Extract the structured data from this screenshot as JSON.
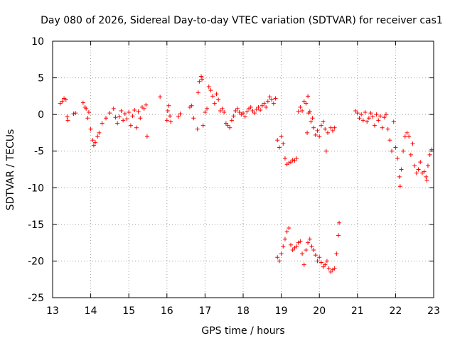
{
  "chart_data": {
    "type": "scatter",
    "title": "Day 080 of 2026, Sidereal Day-to-day VTEC variation (SDTVAR) for receiver cas1",
    "xlabel": "GPS time / hours",
    "ylabel": "SDTVAR / TECUs",
    "xlim": [
      13,
      23
    ],
    "ylim": [
      -25,
      10
    ],
    "x_ticks": [
      "13",
      "14",
      "15",
      "16",
      "17",
      "18",
      "19",
      "20",
      "21",
      "22",
      "23"
    ],
    "y_ticks": [
      "10",
      "5",
      "0",
      "-5",
      "-10",
      "-15",
      "-20",
      "-25"
    ],
    "grid": true,
    "marker": "+",
    "color": "#ff0000",
    "series": [
      {
        "name": "SDTVAR",
        "points": [
          [
            13.2,
            1.5
          ],
          [
            13.25,
            1.8
          ],
          [
            13.3,
            2.2
          ],
          [
            13.35,
            2.0
          ],
          [
            13.38,
            -0.3
          ],
          [
            13.4,
            -0.8
          ],
          [
            13.55,
            0.1
          ],
          [
            13.6,
            0.2
          ],
          [
            13.8,
            1.6
          ],
          [
            13.85,
            1.0
          ],
          [
            13.88,
            0.8
          ],
          [
            13.92,
            -0.5
          ],
          [
            13.95,
            0.3
          ],
          [
            14.0,
            -2.0
          ],
          [
            14.05,
            -3.5
          ],
          [
            14.08,
            -4.2
          ],
          [
            14.12,
            -3.8
          ],
          [
            14.18,
            -3.0
          ],
          [
            14.22,
            -2.5
          ],
          [
            14.3,
            -1.2
          ],
          [
            14.4,
            -0.5
          ],
          [
            14.5,
            0.2
          ],
          [
            14.6,
            0.8
          ],
          [
            14.65,
            -0.4
          ],
          [
            14.7,
            -1.2
          ],
          [
            14.75,
            -0.3
          ],
          [
            14.8,
            0.5
          ],
          [
            14.85,
            -0.8
          ],
          [
            14.9,
            0.1
          ],
          [
            14.95,
            -0.6
          ],
          [
            15.0,
            0.3
          ],
          [
            15.05,
            -1.5
          ],
          [
            15.1,
            -0.2
          ],
          [
            15.15,
            0.6
          ],
          [
            15.2,
            -1.8
          ],
          [
            15.25,
            0.4
          ],
          [
            15.3,
            -0.5
          ],
          [
            15.35,
            1.0
          ],
          [
            15.4,
            0.8
          ],
          [
            15.45,
            1.3
          ],
          [
            15.48,
            -3.0
          ],
          [
            15.82,
            2.4
          ],
          [
            16.0,
            -0.8
          ],
          [
            16.02,
            0.5
          ],
          [
            16.05,
            1.2
          ],
          [
            16.08,
            -0.2
          ],
          [
            16.1,
            -1.0
          ],
          [
            16.3,
            -0.3
          ],
          [
            16.35,
            0.1
          ],
          [
            16.6,
            1.0
          ],
          [
            16.65,
            1.2
          ],
          [
            16.7,
            -0.5
          ],
          [
            16.8,
            -2.0
          ],
          [
            16.82,
            3.0
          ],
          [
            16.85,
            4.5
          ],
          [
            16.9,
            5.2
          ],
          [
            16.92,
            4.8
          ],
          [
            16.95,
            -1.5
          ],
          [
            17.0,
            0.3
          ],
          [
            17.05,
            0.8
          ],
          [
            17.1,
            3.8
          ],
          [
            17.15,
            3.3
          ],
          [
            17.2,
            2.5
          ],
          [
            17.25,
            1.5
          ],
          [
            17.3,
            2.8
          ],
          [
            17.35,
            2.0
          ],
          [
            17.4,
            0.5
          ],
          [
            17.45,
            0.8
          ],
          [
            17.5,
            0.3
          ],
          [
            17.55,
            -1.2
          ],
          [
            17.6,
            -1.5
          ],
          [
            17.65,
            -1.8
          ],
          [
            17.7,
            -0.8
          ],
          [
            17.75,
            -0.2
          ],
          [
            17.8,
            0.5
          ],
          [
            17.85,
            0.8
          ],
          [
            17.9,
            0.3
          ],
          [
            17.95,
            0.0
          ],
          [
            18.0,
            0.2
          ],
          [
            18.05,
            -0.3
          ],
          [
            18.1,
            0.4
          ],
          [
            18.15,
            0.8
          ],
          [
            18.2,
            1.0
          ],
          [
            18.25,
            0.5
          ],
          [
            18.3,
            0.2
          ],
          [
            18.35,
            0.7
          ],
          [
            18.4,
            1.0
          ],
          [
            18.45,
            0.6
          ],
          [
            18.5,
            1.2
          ],
          [
            18.55,
            1.5
          ],
          [
            18.6,
            1.0
          ],
          [
            18.65,
            1.8
          ],
          [
            18.7,
            2.4
          ],
          [
            18.75,
            2.0
          ],
          [
            18.8,
            1.5
          ],
          [
            18.85,
            2.2
          ],
          [
            18.9,
            -3.5
          ],
          [
            18.95,
            -4.5
          ],
          [
            19.0,
            -3.0
          ],
          [
            19.05,
            -4.0
          ],
          [
            19.1,
            -6.0
          ],
          [
            19.15,
            -6.8
          ],
          [
            19.2,
            -6.6
          ],
          [
            19.25,
            -6.5
          ],
          [
            19.3,
            -6.2
          ],
          [
            19.35,
            -6.3
          ],
          [
            19.4,
            -6.0
          ],
          [
            19.45,
            0.4
          ],
          [
            19.5,
            1.0
          ],
          [
            19.55,
            0.5
          ],
          [
            19.6,
            1.8
          ],
          [
            19.65,
            1.5
          ],
          [
            19.7,
            2.5
          ],
          [
            19.72,
            0.2
          ],
          [
            19.68,
            -2.5
          ],
          [
            19.75,
            0.4
          ],
          [
            19.78,
            -1.0
          ],
          [
            19.82,
            -0.5
          ],
          [
            19.85,
            -1.8
          ],
          [
            19.9,
            -2.8
          ],
          [
            19.95,
            -2.2
          ],
          [
            20.0,
            -3.0
          ],
          [
            20.05,
            -1.5
          ],
          [
            20.1,
            -1.0
          ],
          [
            20.15,
            -2.0
          ],
          [
            20.18,
            -5.0
          ],
          [
            20.22,
            -2.5
          ],
          [
            20.3,
            -1.8
          ],
          [
            20.35,
            -2.2
          ],
          [
            20.4,
            -1.8
          ],
          [
            18.9,
            -19.5
          ],
          [
            18.95,
            -20.0
          ],
          [
            19.0,
            -19.0
          ],
          [
            19.05,
            -18.0
          ],
          [
            19.1,
            -17.0
          ],
          [
            19.15,
            -16.0
          ],
          [
            19.2,
            -15.5
          ],
          [
            19.25,
            -17.8
          ],
          [
            19.3,
            -18.5
          ],
          [
            19.35,
            -18.2
          ],
          [
            19.4,
            -18.0
          ],
          [
            19.45,
            -17.5
          ],
          [
            19.5,
            -17.3
          ],
          [
            19.55,
            -19.0
          ],
          [
            19.6,
            -20.5
          ],
          [
            19.65,
            -18.5
          ],
          [
            19.7,
            -17.5
          ],
          [
            19.75,
            -17.0
          ],
          [
            19.8,
            -18.0
          ],
          [
            19.85,
            -18.5
          ],
          [
            19.9,
            -19.2
          ],
          [
            19.95,
            -20.0
          ],
          [
            20.0,
            -19.5
          ],
          [
            20.05,
            -20.2
          ],
          [
            20.1,
            -20.8
          ],
          [
            20.15,
            -20.5
          ],
          [
            20.2,
            -20.0
          ],
          [
            20.25,
            -21.0
          ],
          [
            20.3,
            -21.5
          ],
          [
            20.35,
            -21.2
          ],
          [
            20.4,
            -21.0
          ],
          [
            20.45,
            -19.0
          ],
          [
            20.5,
            -16.5
          ],
          [
            20.52,
            -14.8
          ],
          [
            20.95,
            0.5
          ],
          [
            21.0,
            0.2
          ],
          [
            21.05,
            -0.5
          ],
          [
            21.1,
            0.0
          ],
          [
            21.15,
            -0.8
          ],
          [
            21.2,
            0.3
          ],
          [
            21.25,
            -1.0
          ],
          [
            21.3,
            -0.5
          ],
          [
            21.35,
            0.2
          ],
          [
            21.4,
            -0.3
          ],
          [
            21.45,
            -1.5
          ],
          [
            21.5,
            0.0
          ],
          [
            21.55,
            -0.8
          ],
          [
            21.6,
            -0.2
          ],
          [
            21.65,
            -1.8
          ],
          [
            21.7,
            -0.4
          ],
          [
            21.75,
            0.0
          ],
          [
            21.8,
            -2.0
          ],
          [
            21.85,
            -3.5
          ],
          [
            21.9,
            -5.0
          ],
          [
            21.95,
            -1.0
          ],
          [
            22.0,
            -4.5
          ],
          [
            22.05,
            -6.0
          ],
          [
            22.1,
            -8.5
          ],
          [
            22.12,
            -9.8
          ],
          [
            22.15,
            -7.5
          ],
          [
            22.2,
            -5.0
          ],
          [
            22.25,
            -3.0
          ],
          [
            22.3,
            -2.5
          ],
          [
            22.35,
            -3.0
          ],
          [
            22.4,
            -5.5
          ],
          [
            22.45,
            -4.0
          ],
          [
            22.5,
            -7.0
          ],
          [
            22.55,
            -8.0
          ],
          [
            22.6,
            -7.5
          ],
          [
            22.65,
            -6.5
          ],
          [
            22.7,
            -8.0
          ],
          [
            22.75,
            -7.8
          ],
          [
            22.8,
            -8.5
          ],
          [
            22.82,
            -9.0
          ],
          [
            22.85,
            -7.0
          ],
          [
            22.9,
            -5.5
          ],
          [
            22.95,
            -4.8
          ]
        ]
      }
    ]
  }
}
